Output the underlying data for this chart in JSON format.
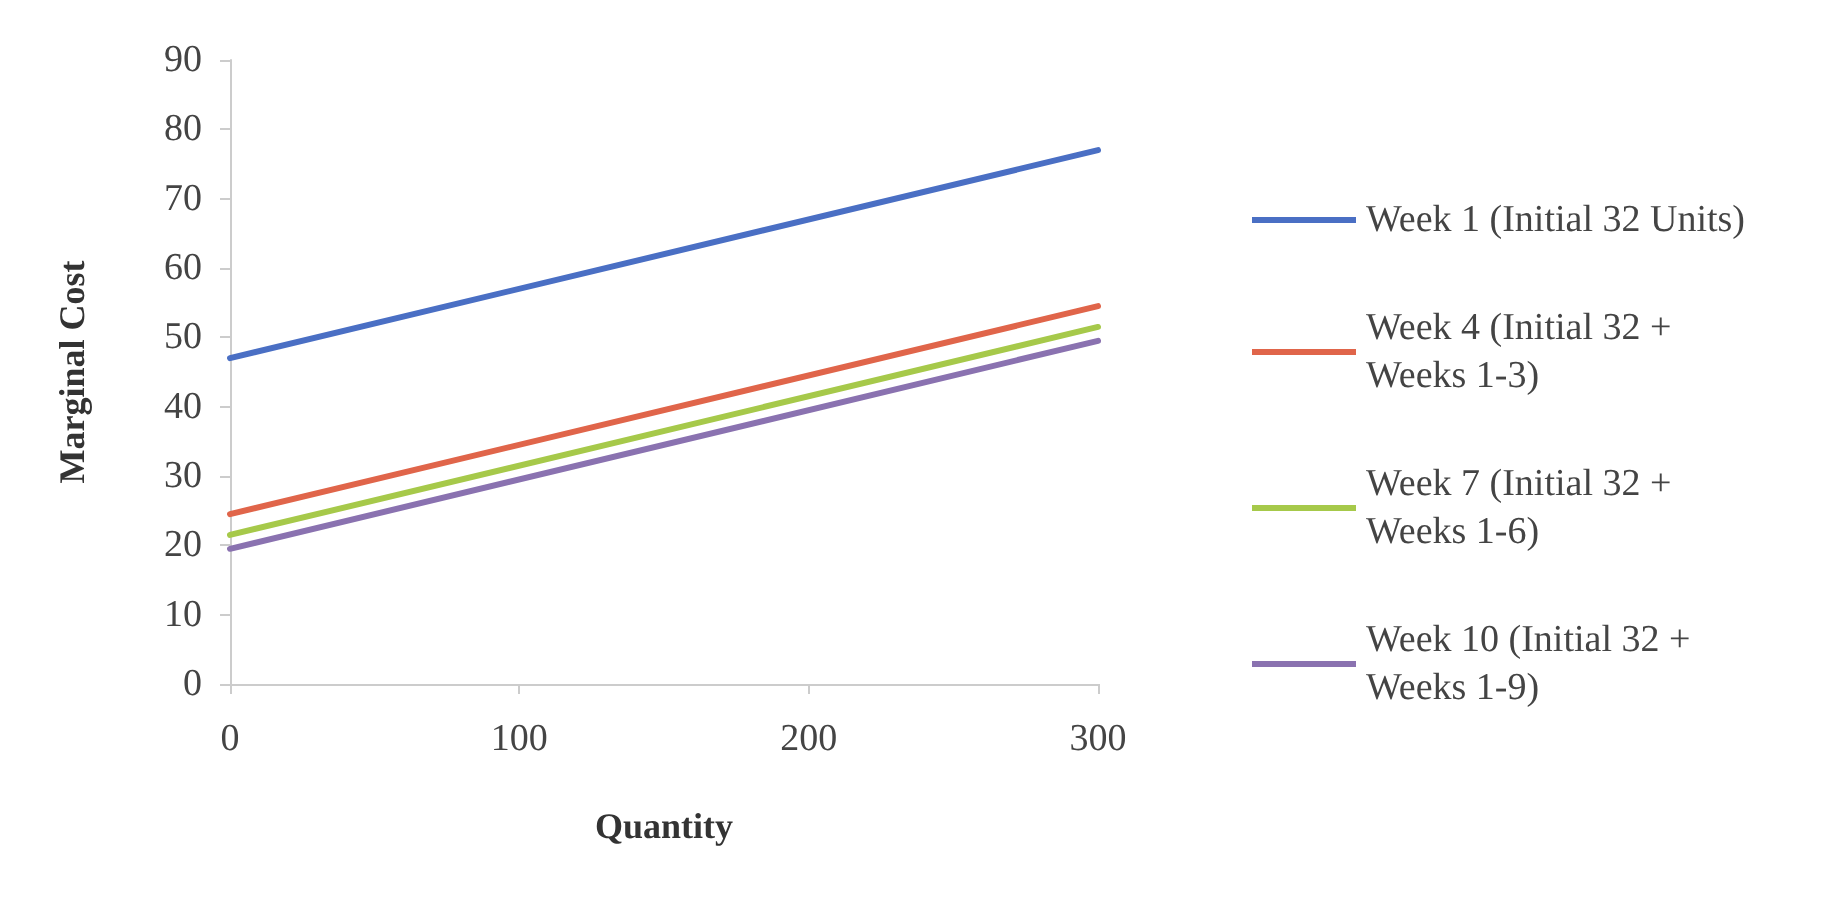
{
  "chart_data": {
    "type": "line",
    "xlabel": "Quantity",
    "ylabel": "Marginal Cost",
    "x": [
      0,
      300
    ],
    "series": [
      {
        "name": "Week 1 (Initial 32 Units)",
        "color": "#4a6fc4",
        "values": [
          47,
          77
        ]
      },
      {
        "name": "Week 4 (Initial 32 + Weeks 1-3)",
        "color": "#e0654a",
        "values": [
          24.5,
          54.5
        ]
      },
      {
        "name": "Week 7 (Initial 32 + Weeks 1-6)",
        "color": "#a6c94a",
        "values": [
          21.5,
          51.5
        ]
      },
      {
        "name": "Week 10 (Initial 32 + Weeks 1-9)",
        "color": "#8a72b0",
        "values": [
          19.5,
          49.5
        ]
      }
    ],
    "xlim": [
      0,
      300
    ],
    "xticks": [
      0,
      100,
      200,
      300
    ],
    "ylim": [
      0,
      90
    ],
    "yticks": [
      0,
      10,
      20,
      30,
      40,
      50,
      60,
      70,
      80,
      90
    ],
    "grid": false,
    "legend": "right",
    "marker": "none",
    "line_style": "solid"
  }
}
